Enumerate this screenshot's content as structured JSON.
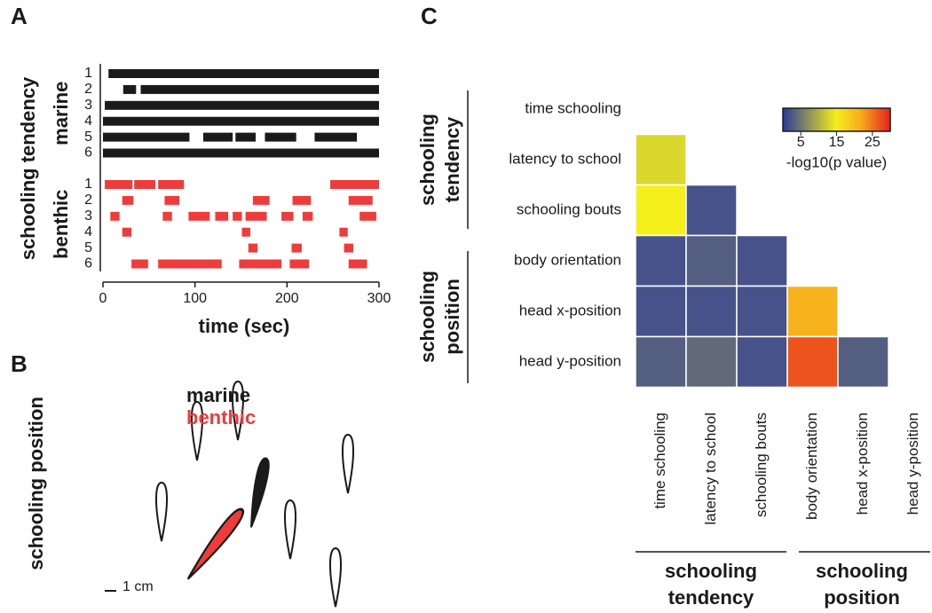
{
  "panel_labels": [
    "A",
    "B",
    "C"
  ],
  "chart_data": [
    {
      "type": "timeline",
      "ylabel": "schooling tendency",
      "xlabel": "time (sec)",
      "xlim": [
        0,
        300
      ],
      "xticks": [
        0,
        100,
        200,
        300
      ],
      "series": [
        {
          "name": "marine",
          "color": "#1a1a1a",
          "rows": [
            {
              "label": "1",
              "intervals": [
                [
                  6,
                  300
                ]
              ]
            },
            {
              "label": "2",
              "intervals": [
                [
                  22,
                  36
                ],
                [
                  41,
                  300
                ]
              ]
            },
            {
              "label": "3",
              "intervals": [
                [
                  2,
                  300
                ]
              ]
            },
            {
              "label": "4",
              "intervals": [
                [
                  0,
                  300
                ]
              ]
            },
            {
              "label": "5",
              "intervals": [
                [
                  0,
                  94
                ],
                [
                  109,
                  141
                ],
                [
                  144,
                  166
                ],
                [
                  176,
                  210
                ],
                [
                  230,
                  276
                ]
              ]
            },
            {
              "label": "6",
              "intervals": [
                [
                  0,
                  300
                ]
              ]
            }
          ]
        },
        {
          "name": "benthic",
          "color": "#ee3b3b",
          "rows": [
            {
              "label": "1",
              "intervals": [
                [
                  2,
                  32
                ],
                [
                  34,
                  57
                ],
                [
                  60,
                  88
                ],
                [
                  247,
                  300
                ]
              ]
            },
            {
              "label": "2",
              "intervals": [
                [
                  21,
                  33
                ],
                [
                  67,
                  83
                ],
                [
                  163,
                  181
                ],
                [
                  206,
                  226
                ],
                [
                  267,
                  293
                ]
              ]
            },
            {
              "label": "3",
              "intervals": [
                [
                  8,
                  18
                ],
                [
                  65,
                  75
                ],
                [
                  93,
                  116
                ],
                [
                  122,
                  136
                ],
                [
                  141,
                  151
                ],
                [
                  155,
                  178
                ],
                [
                  194,
                  207
                ],
                [
                  217,
                  228
                ],
                [
                  279,
                  297
                ]
              ]
            },
            {
              "label": "4",
              "intervals": [
                [
                  21,
                  31
                ],
                [
                  151,
                  160
                ],
                [
                  257,
                  266
                ]
              ]
            },
            {
              "label": "5",
              "intervals": [
                [
                  158,
                  168
                ],
                [
                  205,
                  216
                ],
                [
                  262,
                  272
                ]
              ]
            },
            {
              "label": "6",
              "intervals": [
                [
                  31,
                  49
                ],
                [
                  60,
                  129
                ],
                [
                  148,
                  194
                ],
                [
                  203,
                  224
                ],
                [
                  267,
                  287
                ]
              ]
            }
          ]
        }
      ]
    },
    {
      "type": "heatmap",
      "row_labels": [
        "time schooling",
        "latency to school",
        "schooling bouts",
        "body orientation",
        "head x-position",
        "head y-position"
      ],
      "col_labels": [
        "time schooling",
        "latency to school",
        "schooling bouts",
        "body orientation",
        "head x-position",
        "head y-position"
      ],
      "groups": [
        [
          "schooling",
          "tendency"
        ],
        [
          "schooling",
          "position"
        ]
      ],
      "values": [
        [
          null,
          null,
          null,
          null,
          null,
          null
        ],
        [
          13,
          null,
          null,
          null,
          null,
          null
        ],
        [
          15,
          2,
          null,
          null,
          null,
          null
        ],
        [
          2,
          3,
          2,
          null,
          null,
          null
        ],
        [
          2,
          2,
          2,
          21,
          null,
          null
        ],
        [
          3,
          4,
          2,
          27,
          3,
          null
        ]
      ],
      "colorbar": {
        "label": "-log10(p value)",
        "clim": [
          0,
          30
        ],
        "ticks": [
          5,
          15,
          25
        ]
      },
      "colorscale": [
        [
          0,
          "#2b3a9a"
        ],
        [
          15,
          "#f5ef1c"
        ],
        [
          22,
          "#f8a81c"
        ],
        [
          30,
          "#e6201e"
        ]
      ]
    }
  ],
  "illustration": {
    "ylabel": "schooling position",
    "legend": [
      {
        "label": "marine",
        "color": "#1a1a1a"
      },
      {
        "label": "benthic",
        "color": "#ee3b3b"
      }
    ],
    "scale_bar": "1 cm"
  }
}
